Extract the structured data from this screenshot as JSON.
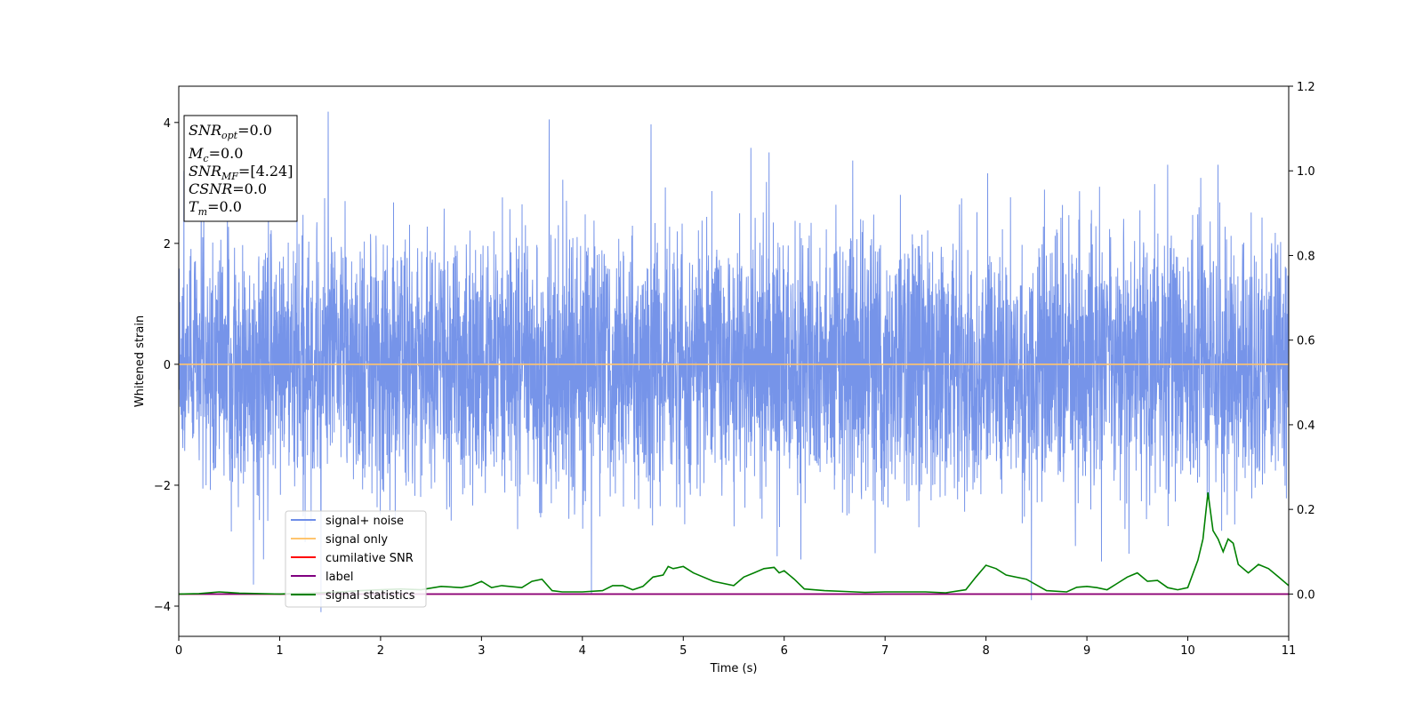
{
  "chart_data": {
    "type": "line",
    "xlabel": "Time (s)",
    "ylabel": "Whitened strain",
    "xlim": [
      0,
      11
    ],
    "ylim": [
      -4.5,
      4.6
    ],
    "y2lim": [
      -0.1,
      1.2
    ],
    "x_ticks": [
      0,
      1,
      2,
      3,
      4,
      5,
      6,
      7,
      8,
      9,
      10,
      11
    ],
    "y_ticks": [
      -4,
      -2,
      0,
      2,
      4
    ],
    "y2_ticks": [
      0.0,
      0.2,
      0.4,
      0.6,
      0.8,
      1.0,
      1.2
    ],
    "y_tick_labels": [
      "−4",
      "−2",
      "0",
      "2",
      "4"
    ],
    "y2_tick_labels": [
      "0.0",
      "0.2",
      "0.4",
      "0.6",
      "0.8",
      "1.0",
      "1.2"
    ],
    "x_tick_labels": [
      "0",
      "1",
      "2",
      "3",
      "4",
      "5",
      "6",
      "7",
      "8",
      "9",
      "10",
      "11"
    ],
    "grid": false,
    "legend_position": "lower-left",
    "annotation": {
      "snr_opt": {
        "base": "SNR",
        "sub": "opt",
        "value": "=0.0"
      },
      "mc": {
        "base": "M",
        "sub": "c",
        "value": "=0.0"
      },
      "snr_mf": {
        "base": "SNR",
        "sub": "MF",
        "value": "=[4.24]"
      },
      "csnr": {
        "base": "CSNR",
        "value": "=0.0"
      },
      "tm": {
        "base": "T",
        "sub": "m",
        "value": "=0.0"
      }
    },
    "series": [
      {
        "name": "signal+ noise",
        "color": "#6f8ee8",
        "axis": "left",
        "kind": "noise",
        "amplitude_envelope": [
          2.0,
          4.2
        ],
        "peaks": [
          [
            0.05,
            3.2
          ],
          [
            1.48,
            4.18
          ],
          [
            3.67,
            4.05
          ],
          [
            4.68,
            3.97
          ],
          [
            5.67,
            3.58
          ],
          [
            9.8,
            3.3
          ],
          [
            10.3,
            3.3
          ],
          [
            1.41,
            -4.1
          ],
          [
            4.09,
            -3.8
          ],
          [
            8.45,
            -3.9
          ]
        ]
      },
      {
        "name": "signal only",
        "color": "#ffc46e",
        "axis": "left",
        "x": [
          0,
          11
        ],
        "values": [
          0,
          0
        ]
      },
      {
        "name": "cumilative SNR",
        "color": "#ff0000",
        "axis": "right",
        "x": [
          0,
          11
        ],
        "values": [
          0,
          0
        ]
      },
      {
        "name": "label",
        "color": "#800080",
        "axis": "right",
        "x": [
          0,
          11
        ],
        "values": [
          0,
          0
        ]
      },
      {
        "name": "signal statistics",
        "color": "#008000",
        "axis": "right",
        "x": [
          0,
          0.2,
          0.4,
          0.6,
          0.8,
          1.0,
          1.2,
          1.4,
          1.6,
          1.8,
          2.0,
          2.2,
          2.4,
          2.6,
          2.8,
          2.9,
          3.0,
          3.1,
          3.2,
          3.4,
          3.5,
          3.6,
          3.7,
          3.8,
          4.0,
          4.2,
          4.3,
          4.4,
          4.5,
          4.6,
          4.7,
          4.8,
          4.85,
          4.9,
          5.0,
          5.1,
          5.3,
          5.5,
          5.6,
          5.7,
          5.8,
          5.9,
          5.95,
          6.0,
          6.1,
          6.2,
          6.4,
          6.6,
          6.8,
          7.0,
          7.2,
          7.4,
          7.6,
          7.8,
          7.9,
          8.0,
          8.1,
          8.2,
          8.4,
          8.6,
          8.8,
          8.9,
          9.0,
          9.1,
          9.2,
          9.3,
          9.4,
          9.5,
          9.6,
          9.7,
          9.8,
          9.9,
          10.0,
          10.1,
          10.15,
          10.2,
          10.25,
          10.3,
          10.35,
          10.4,
          10.45,
          10.5,
          10.6,
          10.7,
          10.8,
          10.9,
          11.0
        ],
        "values": [
          0.0,
          0.001,
          0.005,
          0.002,
          0.001,
          0.0,
          0.002,
          0.003,
          0.005,
          0.008,
          0.01,
          0.012,
          0.01,
          0.018,
          0.015,
          0.02,
          0.03,
          0.015,
          0.02,
          0.015,
          0.03,
          0.035,
          0.008,
          0.005,
          0.005,
          0.008,
          0.02,
          0.02,
          0.01,
          0.018,
          0.04,
          0.045,
          0.065,
          0.06,
          0.065,
          0.05,
          0.03,
          0.02,
          0.04,
          0.05,
          0.06,
          0.063,
          0.05,
          0.055,
          0.035,
          0.012,
          0.008,
          0.006,
          0.004,
          0.005,
          0.005,
          0.005,
          0.003,
          0.01,
          0.04,
          0.068,
          0.06,
          0.045,
          0.035,
          0.008,
          0.005,
          0.016,
          0.018,
          0.015,
          0.01,
          0.025,
          0.04,
          0.05,
          0.03,
          0.032,
          0.015,
          0.01,
          0.015,
          0.08,
          0.13,
          0.24,
          0.15,
          0.13,
          0.1,
          0.13,
          0.12,
          0.07,
          0.05,
          0.07,
          0.06,
          0.04,
          0.02
        ]
      }
    ]
  }
}
